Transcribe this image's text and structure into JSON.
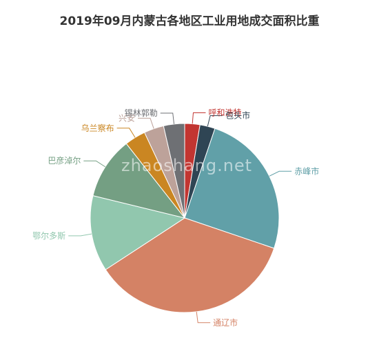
{
  "chart_data": {
    "type": "pie",
    "title": "2019年09月内蒙古各地区工业用地成交面积比重",
    "watermark": "zhaoshang.net",
    "categories": [
      "呼和浩特",
      "包头市",
      "赤峰市",
      "通辽市",
      "鄂尔多斯",
      "巴彦淖尔",
      "乌兰察布",
      "兴安",
      "锡林郭勒"
    ],
    "values": [
      2.6,
      2.6,
      25.0,
      35.6,
      13.0,
      10.6,
      3.6,
      3.4,
      3.6
    ],
    "colors": [
      "#c23531",
      "#2f4554",
      "#61a0a8",
      "#d48265",
      "#91c7ae",
      "#749f83",
      "#ca8622",
      "#bda29a",
      "#6e7074"
    ],
    "legend": "none"
  }
}
